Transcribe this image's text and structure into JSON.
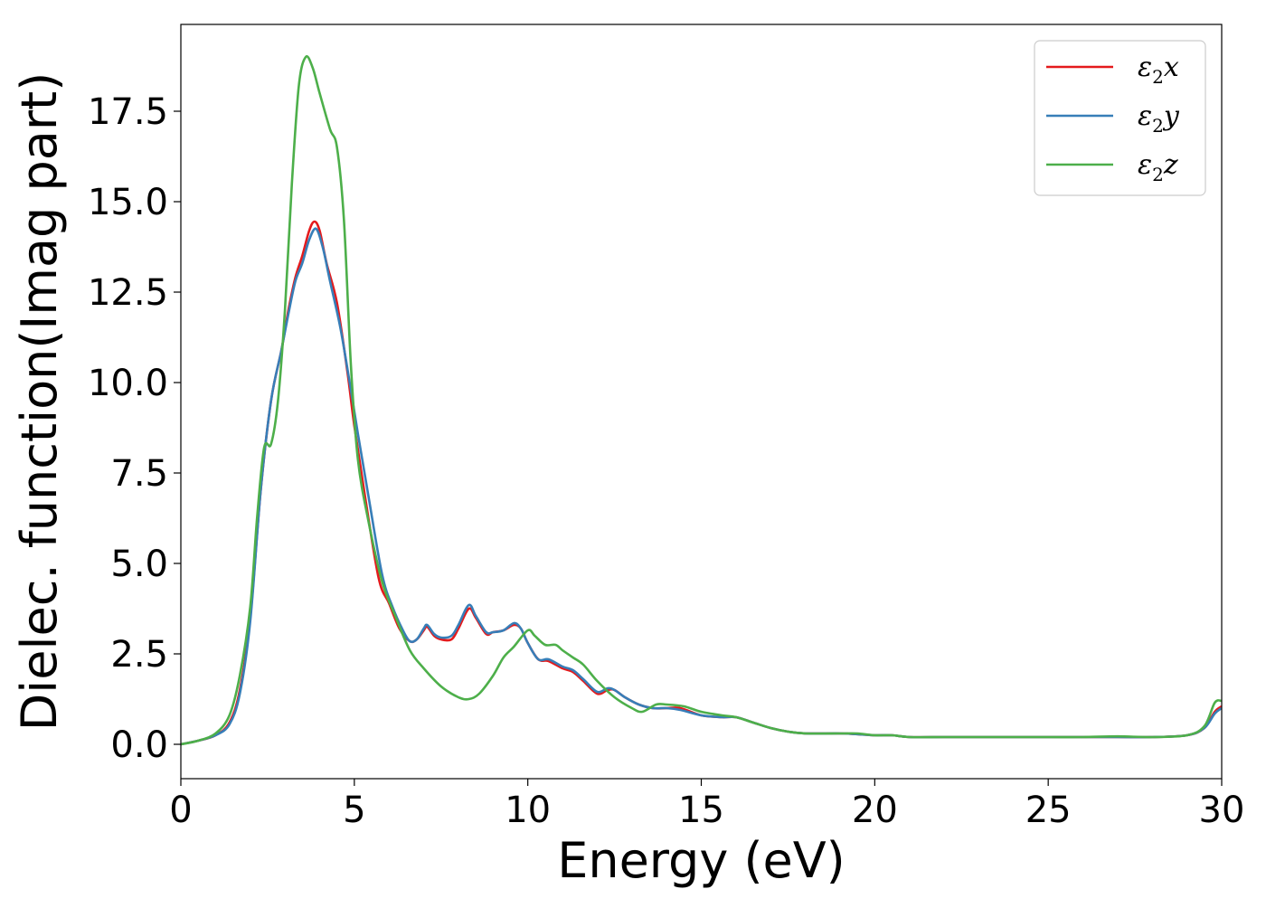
{
  "chart_data": {
    "type": "line",
    "title": "",
    "xlabel": "Energy (eV)",
    "ylabel": "Dielec. function(Imag part)",
    "xlim": [
      0,
      30
    ],
    "ylim": [
      -0.95,
      19.9
    ],
    "xticks": [
      "0",
      "5",
      "10",
      "15",
      "20",
      "25",
      "30"
    ],
    "xtick_values": [
      0,
      5,
      10,
      15,
      20,
      25,
      30
    ],
    "yticks": [
      "0.0",
      "2.5",
      "5.0",
      "7.5",
      "10.0",
      "12.5",
      "15.0",
      "17.5"
    ],
    "ytick_values": [
      0,
      2.5,
      5,
      7.5,
      10,
      12.5,
      15,
      17.5
    ],
    "grid": false,
    "legend_position": "top-right",
    "series": [
      {
        "name": "ε2x",
        "legend_main": "ε",
        "legend_sub": "2",
        "legend_var": "x",
        "color": "#e41a1c",
        "points": [
          [
            0,
            0
          ],
          [
            0.5,
            0.1
          ],
          [
            1,
            0.25
          ],
          [
            1.4,
            0.6
          ],
          [
            1.7,
            1.5
          ],
          [
            2.0,
            3.5
          ],
          [
            2.3,
            7.0
          ],
          [
            2.6,
            9.5
          ],
          [
            2.9,
            10.9
          ],
          [
            3.1,
            12.0
          ],
          [
            3.3,
            12.9
          ],
          [
            3.5,
            13.5
          ],
          [
            3.7,
            14.2
          ],
          [
            3.85,
            14.45
          ],
          [
            4.0,
            14.2
          ],
          [
            4.2,
            13.3
          ],
          [
            4.5,
            12.2
          ],
          [
            4.8,
            10.3
          ],
          [
            5.0,
            8.8
          ],
          [
            5.3,
            6.9
          ],
          [
            5.7,
            4.6
          ],
          [
            6.0,
            3.9
          ],
          [
            6.3,
            3.2
          ],
          [
            6.6,
            2.85
          ],
          [
            6.8,
            2.9
          ],
          [
            7.0,
            3.15
          ],
          [
            7.1,
            3.25
          ],
          [
            7.3,
            3.0
          ],
          [
            7.5,
            2.9
          ],
          [
            7.8,
            2.9
          ],
          [
            8.0,
            3.2
          ],
          [
            8.3,
            3.75
          ],
          [
            8.5,
            3.5
          ],
          [
            8.8,
            3.05
          ],
          [
            9.0,
            3.1
          ],
          [
            9.3,
            3.15
          ],
          [
            9.6,
            3.3
          ],
          [
            9.8,
            3.2
          ],
          [
            10.0,
            2.8
          ],
          [
            10.3,
            2.35
          ],
          [
            10.6,
            2.3
          ],
          [
            11.0,
            2.1
          ],
          [
            11.3,
            2.0
          ],
          [
            11.6,
            1.75
          ],
          [
            12.0,
            1.4
          ],
          [
            12.3,
            1.5
          ],
          [
            12.5,
            1.5
          ],
          [
            12.8,
            1.3
          ],
          [
            13.2,
            1.1
          ],
          [
            13.6,
            1.0
          ],
          [
            14.0,
            1.0
          ],
          [
            14.4,
            1.0
          ],
          [
            15.0,
            0.8
          ],
          [
            15.6,
            0.75
          ],
          [
            16.0,
            0.75
          ],
          [
            16.5,
            0.6
          ],
          [
            17.0,
            0.45
          ],
          [
            17.5,
            0.35
          ],
          [
            18.0,
            0.3
          ],
          [
            19.0,
            0.3
          ],
          [
            19.5,
            0.28
          ],
          [
            20.0,
            0.25
          ],
          [
            20.5,
            0.25
          ],
          [
            21.0,
            0.2
          ],
          [
            22.0,
            0.2
          ],
          [
            23.0,
            0.2
          ],
          [
            24.0,
            0.2
          ],
          [
            25.0,
            0.2
          ],
          [
            26.0,
            0.2
          ],
          [
            27.0,
            0.2
          ],
          [
            28.0,
            0.2
          ],
          [
            29.0,
            0.25
          ],
          [
            29.5,
            0.45
          ],
          [
            29.8,
            0.9
          ],
          [
            30.0,
            1.05
          ]
        ]
      },
      {
        "name": "ε2y",
        "legend_main": "ε",
        "legend_sub": "2",
        "legend_var": "y",
        "color": "#377eb8",
        "points": [
          [
            0,
            0
          ],
          [
            0.5,
            0.1
          ],
          [
            1,
            0.25
          ],
          [
            1.4,
            0.55
          ],
          [
            1.7,
            1.4
          ],
          [
            2.0,
            3.4
          ],
          [
            2.3,
            7.0
          ],
          [
            2.6,
            9.5
          ],
          [
            2.9,
            10.9
          ],
          [
            3.1,
            11.9
          ],
          [
            3.3,
            12.8
          ],
          [
            3.5,
            13.3
          ],
          [
            3.7,
            13.95
          ],
          [
            3.9,
            14.25
          ],
          [
            4.1,
            13.7
          ],
          [
            4.3,
            12.8
          ],
          [
            4.6,
            11.5
          ],
          [
            4.9,
            9.8
          ],
          [
            5.1,
            8.6
          ],
          [
            5.4,
            6.9
          ],
          [
            5.8,
            4.7
          ],
          [
            6.1,
            3.8
          ],
          [
            6.4,
            3.15
          ],
          [
            6.6,
            2.85
          ],
          [
            6.8,
            2.9
          ],
          [
            7.0,
            3.2
          ],
          [
            7.1,
            3.3
          ],
          [
            7.3,
            3.05
          ],
          [
            7.5,
            2.95
          ],
          [
            7.8,
            3.0
          ],
          [
            8.0,
            3.3
          ],
          [
            8.3,
            3.85
          ],
          [
            8.5,
            3.55
          ],
          [
            8.8,
            3.1
          ],
          [
            9.0,
            3.1
          ],
          [
            9.3,
            3.15
          ],
          [
            9.6,
            3.35
          ],
          [
            9.8,
            3.2
          ],
          [
            10.0,
            2.8
          ],
          [
            10.3,
            2.35
          ],
          [
            10.6,
            2.35
          ],
          [
            11.0,
            2.15
          ],
          [
            11.3,
            2.05
          ],
          [
            11.6,
            1.8
          ],
          [
            12.0,
            1.45
          ],
          [
            12.3,
            1.55
          ],
          [
            12.5,
            1.5
          ],
          [
            12.8,
            1.3
          ],
          [
            13.2,
            1.1
          ],
          [
            13.6,
            1.0
          ],
          [
            14.0,
            1.0
          ],
          [
            14.4,
            0.95
          ],
          [
            15.0,
            0.8
          ],
          [
            15.6,
            0.75
          ],
          [
            16.0,
            0.75
          ],
          [
            16.5,
            0.6
          ],
          [
            17.0,
            0.45
          ],
          [
            17.5,
            0.35
          ],
          [
            18.0,
            0.3
          ],
          [
            19.0,
            0.3
          ],
          [
            19.5,
            0.28
          ],
          [
            20.0,
            0.25
          ],
          [
            20.5,
            0.25
          ],
          [
            21.0,
            0.2
          ],
          [
            22.0,
            0.2
          ],
          [
            23.0,
            0.2
          ],
          [
            24.0,
            0.2
          ],
          [
            25.0,
            0.2
          ],
          [
            26.0,
            0.2
          ],
          [
            27.0,
            0.2
          ],
          [
            28.0,
            0.2
          ],
          [
            29.0,
            0.25
          ],
          [
            29.5,
            0.45
          ],
          [
            29.8,
            0.85
          ],
          [
            30.0,
            1.0
          ]
        ]
      },
      {
        "name": "ε2z",
        "legend_main": "ε",
        "legend_sub": "2",
        "legend_var": "z",
        "color": "#4daf4a",
        "points": [
          [
            0,
            0
          ],
          [
            0.5,
            0.1
          ],
          [
            1,
            0.3
          ],
          [
            1.4,
            0.8
          ],
          [
            1.7,
            1.9
          ],
          [
            2.0,
            3.8
          ],
          [
            2.2,
            6.3
          ],
          [
            2.4,
            8.2
          ],
          [
            2.6,
            8.3
          ],
          [
            2.8,
            9.5
          ],
          [
            3.0,
            12.0
          ],
          [
            3.2,
            15.5
          ],
          [
            3.4,
            18.2
          ],
          [
            3.6,
            19.0
          ],
          [
            3.8,
            18.7
          ],
          [
            4.0,
            18.0
          ],
          [
            4.3,
            17.0
          ],
          [
            4.5,
            16.5
          ],
          [
            4.7,
            14.5
          ],
          [
            4.9,
            10.5
          ],
          [
            5.1,
            7.9
          ],
          [
            5.4,
            6.2
          ],
          [
            5.8,
            4.5
          ],
          [
            6.2,
            3.5
          ],
          [
            6.6,
            2.6
          ],
          [
            7.0,
            2.1
          ],
          [
            7.5,
            1.6
          ],
          [
            8.0,
            1.3
          ],
          [
            8.3,
            1.25
          ],
          [
            8.6,
            1.4
          ],
          [
            9.0,
            1.9
          ],
          [
            9.3,
            2.4
          ],
          [
            9.6,
            2.7
          ],
          [
            10.0,
            3.15
          ],
          [
            10.2,
            3.0
          ],
          [
            10.5,
            2.75
          ],
          [
            10.8,
            2.75
          ],
          [
            11.0,
            2.6
          ],
          [
            11.3,
            2.4
          ],
          [
            11.6,
            2.2
          ],
          [
            12.0,
            1.75
          ],
          [
            12.5,
            1.3
          ],
          [
            13.0,
            1.0
          ],
          [
            13.3,
            0.9
          ],
          [
            13.7,
            1.1
          ],
          [
            14.0,
            1.1
          ],
          [
            14.5,
            1.05
          ],
          [
            15.0,
            0.9
          ],
          [
            15.6,
            0.8
          ],
          [
            16.0,
            0.75
          ],
          [
            16.5,
            0.6
          ],
          [
            17.0,
            0.45
          ],
          [
            17.5,
            0.35
          ],
          [
            18.0,
            0.3
          ],
          [
            19.0,
            0.3
          ],
          [
            19.5,
            0.3
          ],
          [
            20.0,
            0.25
          ],
          [
            20.5,
            0.25
          ],
          [
            21.0,
            0.2
          ],
          [
            22.0,
            0.2
          ],
          [
            23.0,
            0.2
          ],
          [
            24.0,
            0.2
          ],
          [
            25.0,
            0.2
          ],
          [
            26.0,
            0.2
          ],
          [
            27.0,
            0.22
          ],
          [
            28.0,
            0.2
          ],
          [
            29.0,
            0.25
          ],
          [
            29.5,
            0.5
          ],
          [
            29.8,
            1.15
          ],
          [
            30.0,
            1.2
          ]
        ]
      }
    ]
  }
}
